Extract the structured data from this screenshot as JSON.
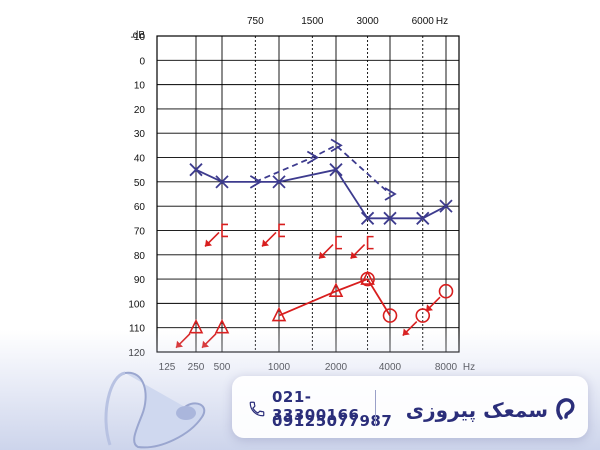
{
  "chart_data": {
    "type": "line",
    "y_unit": "dB",
    "x_unit": "Hz",
    "ylim": [
      -10,
      120
    ],
    "y_reversed": true,
    "y_ticks": [
      "-10",
      "0",
      "10",
      "20",
      "30",
      "40",
      "50",
      "60",
      "70",
      "80",
      "90",
      "100",
      "110",
      "120"
    ],
    "bottom_ticks": [
      "125",
      "250",
      "500",
      "1000",
      "2000",
      "4000",
      "8000"
    ],
    "top_ticks": [
      "750",
      "1500",
      "3000",
      "6000"
    ],
    "grid": true,
    "series": [
      {
        "symbol": "x",
        "color": "#3d3b8e",
        "style": "solid",
        "x": [
          250,
          500,
          1000,
          2000,
          3000,
          4000,
          6000,
          8000
        ],
        "y": [
          45,
          50,
          50,
          45,
          65,
          65,
          65,
          60
        ]
      },
      {
        "symbol": ">",
        "color": "#3d3b8e",
        "style": "dashed",
        "x": [
          750,
          1500,
          2000,
          4000
        ],
        "y": [
          50,
          40,
          35,
          55
        ]
      },
      {
        "symbol": "triangle",
        "color": "#d81e1e",
        "style": "solid",
        "x": [
          1000,
          2000,
          3000
        ],
        "y": [
          105,
          95,
          90
        ]
      },
      {
        "symbol": "triangle",
        "color": "#d81e1e",
        "style": "none",
        "x": [
          250,
          500
        ],
        "y": [
          110,
          110
        ]
      },
      {
        "symbol": "circle",
        "color": "#d81e1e",
        "style": "solid",
        "x": [
          3000,
          4000
        ],
        "y": [
          90,
          105
        ]
      },
      {
        "symbol": "circle",
        "color": "#d81e1e",
        "style": "none",
        "x": [
          6000,
          8000
        ],
        "y": [
          105,
          95
        ]
      },
      {
        "symbol": "bracket",
        "color": "#d81e1e",
        "style": "none",
        "x": [
          500,
          1000,
          2000,
          3000
        ],
        "y": [
          70,
          70,
          75,
          75
        ]
      }
    ]
  },
  "colors": {
    "axis": "#000000",
    "right_ear": "#3d3b8e",
    "left_ear": "#d81e1e"
  },
  "footer": {
    "phone_1": "021-33300166",
    "phone_2": "09125077987",
    "brand_name": "سمعک پیروزی",
    "phone_icon": "phone-icon",
    "logo_icon": "ear-logo-icon"
  }
}
